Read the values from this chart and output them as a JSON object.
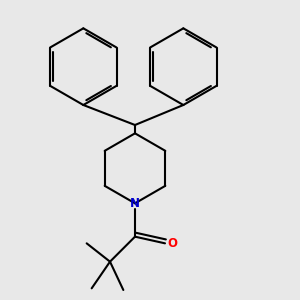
{
  "bg_color": "#e8e8e8",
  "bond_color": "#000000",
  "N_color": "#0000cc",
  "O_color": "#ff0000",
  "line_width": 1.5,
  "dbo": 0.008,
  "fig_w": 3.0,
  "fig_h": 3.0,
  "dpi": 100
}
